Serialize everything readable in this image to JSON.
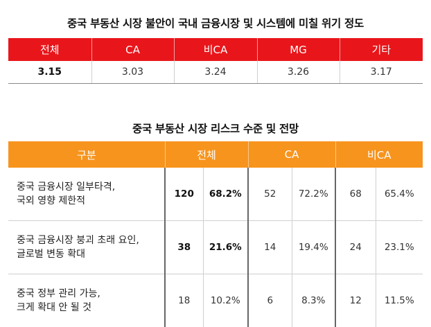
{
  "table1": {
    "title": "중국 부동산 시장 불안이 국내 금융시장 및 시스템에 미칠 위기 정도",
    "headers": [
      "전체",
      "CA",
      "비CA",
      "MG",
      "기타"
    ],
    "values": [
      "3.15",
      "3.03",
      "3.24",
      "3.26",
      "3.17"
    ]
  },
  "table2": {
    "title": "중국 부동산 시장 리스크 수준 및 전망",
    "headers": [
      "구분",
      "전체",
      "CA",
      "비CA"
    ],
    "rows": [
      {
        "label_line1": "중국 금융시장 일부타격,",
        "label_line2": "국외 영향 제한적",
        "total_n": "120",
        "total_pct": "68.2%",
        "ca_n": "52",
        "ca_pct": "72.2%",
        "nonca_n": "68",
        "nonca_pct": "65.4%"
      },
      {
        "label_line1": "중국 금융시장 붕괴 초래 요인,",
        "label_line2": "글로벌 변동 확대",
        "total_n": "38",
        "total_pct": "21.6%",
        "ca_n": "14",
        "ca_pct": "19.4%",
        "nonca_n": "24",
        "nonca_pct": "23.1%"
      },
      {
        "label_line1": "중국 정부 관리 가능,",
        "label_line2": "크게 확대 안 될 것",
        "total_n": "18",
        "total_pct": "10.2%",
        "ca_n": "6",
        "ca_pct": "8.3%",
        "nonca_n": "12",
        "nonca_pct": "11.5%"
      }
    ]
  },
  "colors": {
    "red_header": "#e8161b",
    "orange_header": "#f7941d"
  }
}
